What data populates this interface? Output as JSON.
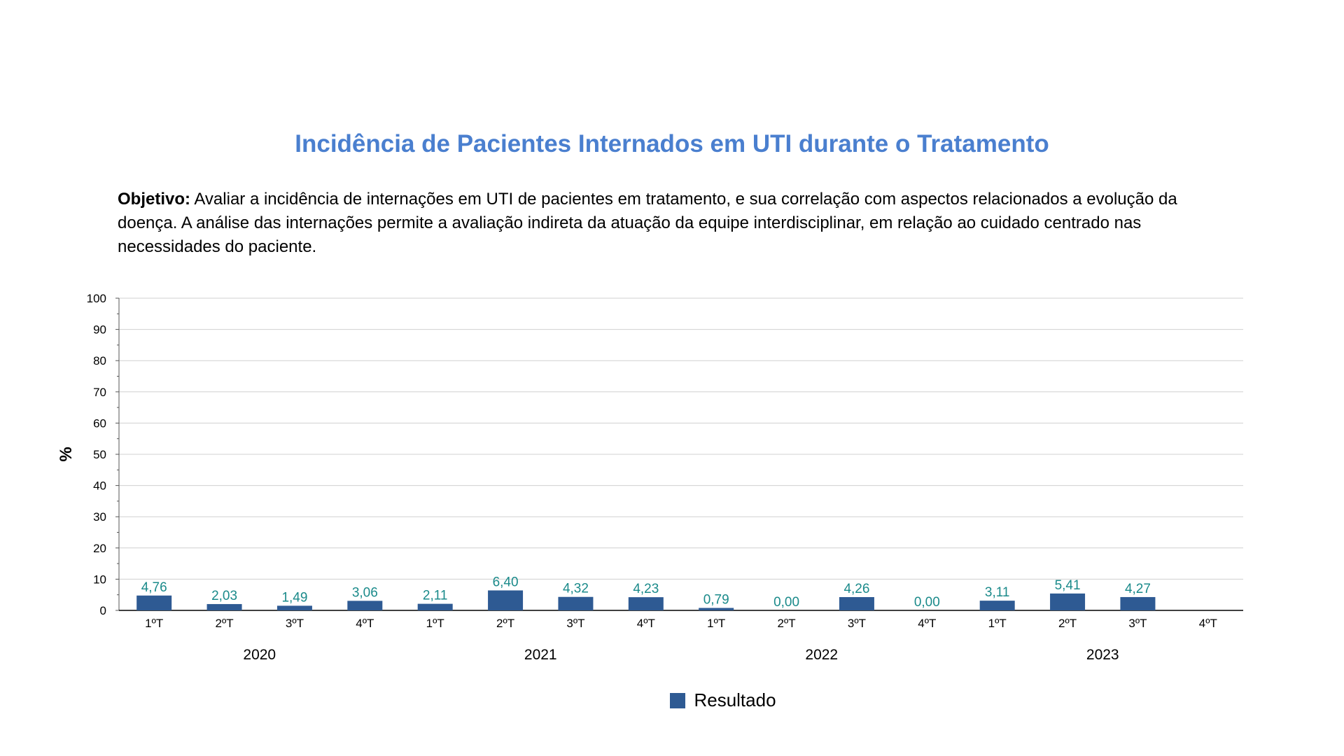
{
  "header": {
    "title": "Incidência de Pacientes Internados em UTI durante o Tratamento",
    "objective_label": "Objetivo:",
    "objective_text": "Avaliar a incidência de internações em UTI de pacientes em tratamento, e sua correlação com aspectos relacionados a evolução da doença. A análise das internações permite a avaliação indireta da atuação da equipe interdisciplinar, em relação ao cuidado centrado nas necessidades do paciente."
  },
  "colors": {
    "title": "#4a7fcf",
    "bar": "#2e5a93",
    "data_label": "#1a8a8a",
    "grid": "#d0d0d0",
    "axis": "#555555"
  },
  "chart_data": {
    "type": "bar",
    "title": "",
    "ylabel": "%",
    "xlabel": "",
    "ylim": [
      0,
      100
    ],
    "yticks": [
      0,
      10,
      20,
      30,
      40,
      50,
      60,
      70,
      80,
      90,
      100
    ],
    "grid": true,
    "legend_position": "bottom",
    "categories": [
      "1ºT",
      "2ºT",
      "3ºT",
      "4ºT",
      "1ºT",
      "2ºT",
      "3ºT",
      "4ºT",
      "1ºT",
      "2ºT",
      "3ºT",
      "4ºT",
      "1ºT",
      "2ºT",
      "3ºT",
      "4ºT"
    ],
    "groups": [
      {
        "label": "2020",
        "count": 4
      },
      {
        "label": "2021",
        "count": 4
      },
      {
        "label": "2022",
        "count": 4
      },
      {
        "label": "2023",
        "count": 4
      }
    ],
    "series": [
      {
        "name": "Resultado",
        "values": [
          4.76,
          2.03,
          1.49,
          3.06,
          2.11,
          6.4,
          4.32,
          4.23,
          0.79,
          0.0,
          4.26,
          0.0,
          3.11,
          5.41,
          4.27,
          null
        ],
        "labels": [
          "4,76",
          "2,03",
          "1,49",
          "3,06",
          "2,11",
          "6,40",
          "4,32",
          "4,23",
          "0,79",
          "0,00",
          "4,26",
          "0,00",
          "3,11",
          "5,41",
          "4,27",
          ""
        ]
      }
    ]
  }
}
